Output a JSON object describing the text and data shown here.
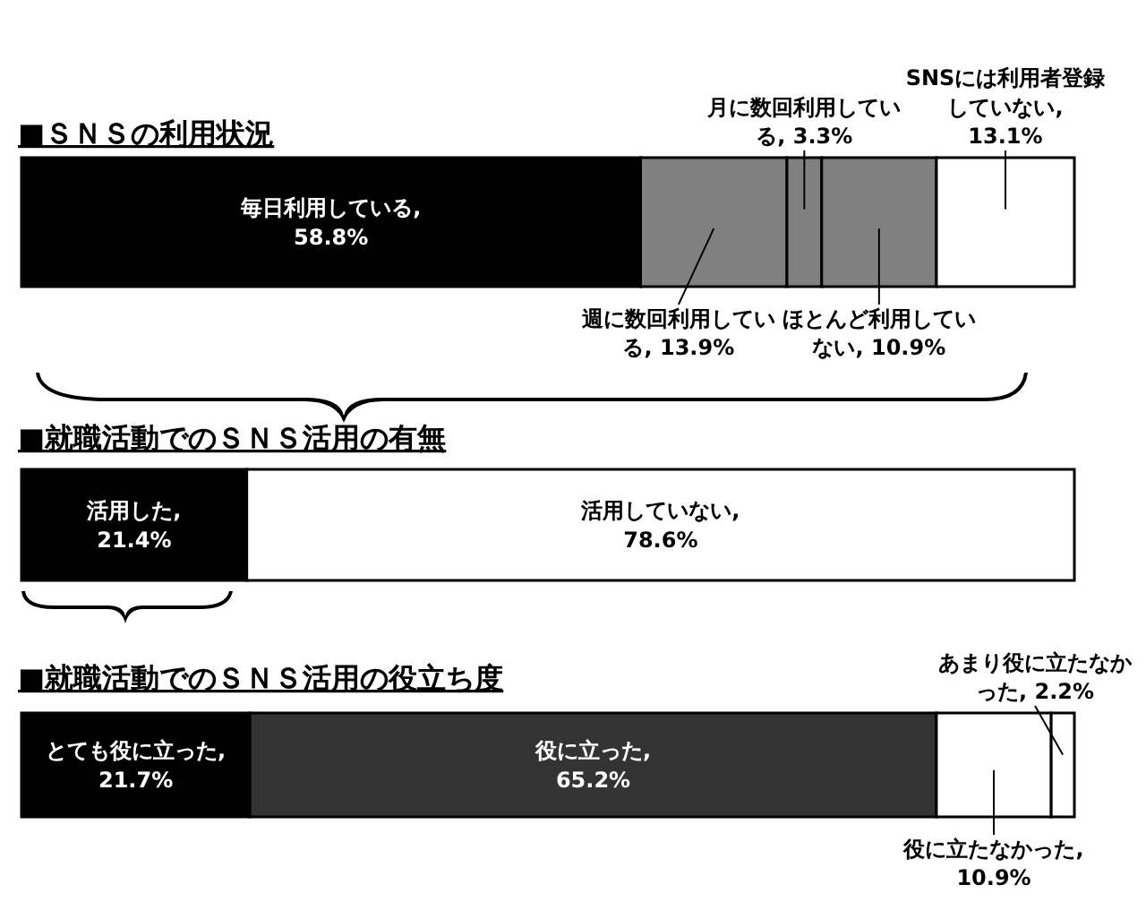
{
  "chart_data": [
    {
      "type": "bar",
      "orientation": "horizontal",
      "stacked": true,
      "title": "■ＳＮＳの利用状況",
      "categories": [
        null
      ],
      "series": [
        {
          "color": "#000000",
          "values": [
            58.8
          ],
          "value_labels": [
            "毎日利用している, 58.8%"
          ]
        },
        {
          "color": "#808080",
          "values": [
            13.9
          ],
          "value_labels": [
            "週に数回利用している, 13.9%"
          ]
        },
        {
          "color": "#808080",
          "values": [
            3.3
          ],
          "value_labels": [
            "月に数回利用している, 3.3%"
          ]
        },
        {
          "color": "#808080",
          "values": [
            10.9
          ],
          "value_labels": [
            "ほとんど利用していない, 10.9%"
          ]
        },
        {
          "color": "#ffffff",
          "values": [
            13.1
          ],
          "value_labels": [
            "SNSには利用者登録していない, 13.1%"
          ]
        }
      ]
    },
    {
      "type": "bar",
      "orientation": "horizontal",
      "stacked": true,
      "title": "■就職活動でのＳＮＳ活用の有無",
      "categories": [
        null
      ],
      "series": [
        {
          "color": "#000000",
          "values": [
            21.4
          ],
          "value_labels": [
            "活用した, 21.4%"
          ]
        },
        {
          "color": "#ffffff",
          "values": [
            78.6
          ],
          "value_labels": [
            "活用していない, 78.6%"
          ]
        }
      ]
    },
    {
      "type": "bar",
      "orientation": "horizontal",
      "stacked": true,
      "title": "■就職活動でのＳＮＳ活用の役立ち度",
      "categories": [
        null
      ],
      "series": [
        {
          "color": "#000000",
          "values": [
            21.7
          ],
          "value_labels": [
            "とても役に立った, 21.7%"
          ]
        },
        {
          "color": "#333333",
          "values": [
            65.2
          ],
          "value_labels": [
            "役に立った, 65.2%"
          ]
        },
        {
          "color": "#ffffff",
          "values": [
            10.9
          ],
          "value_labels": [
            "役に立たなかった, 10.9%"
          ]
        },
        {
          "color": "#ffffff",
          "values": [
            2.2
          ],
          "value_labels": [
            "あまり役に立たなかった, 2.2%"
          ]
        }
      ]
    }
  ]
}
